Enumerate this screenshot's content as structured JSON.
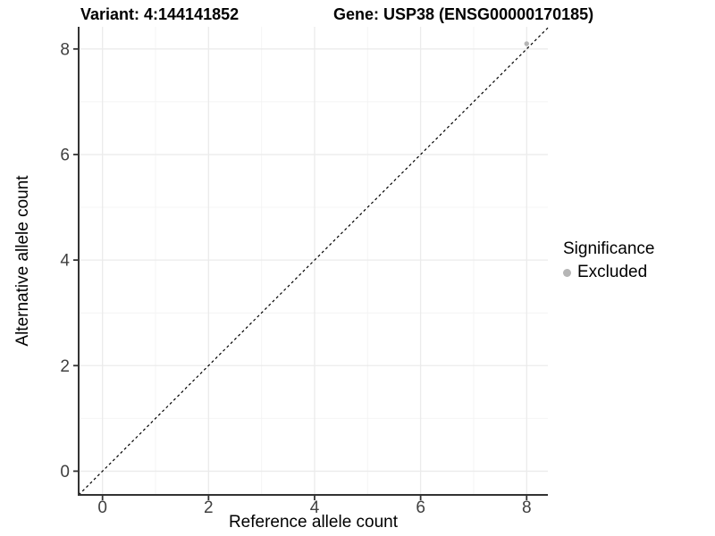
{
  "header": {
    "variant_title": "Variant: 4:144141852",
    "gene_title": "Gene: USP38 (ENSG00000170185)"
  },
  "chart_data": {
    "type": "scatter",
    "xlabel": "Reference allele count",
    "ylabel": "Alternative allele count",
    "xlim": [
      -0.45,
      8.4
    ],
    "ylim": [
      -0.45,
      8.42
    ],
    "x_ticks": [
      "0",
      "2",
      "4",
      "6",
      "8"
    ],
    "x_tick_values": [
      0,
      2,
      4,
      6,
      8
    ],
    "y_ticks": [
      "0",
      "2",
      "4",
      "6",
      "8"
    ],
    "y_tick_values": [
      0,
      2,
      4,
      6,
      8
    ],
    "x_minor_ticks": [
      1,
      3,
      5,
      7
    ],
    "y_minor_ticks": [
      1,
      3,
      5,
      7
    ],
    "grid": "major+minor",
    "reference_line": {
      "type": "identity y=x",
      "style": "dashed",
      "color": "#000000"
    },
    "series": [
      {
        "name": "Excluded",
        "color": "#b5b5b5",
        "marker": "circle",
        "points": [
          [
            8,
            8.1
          ]
        ]
      }
    ],
    "legend": {
      "title": "Significance",
      "position": "right",
      "items": [
        {
          "label": "Excluded",
          "color": "#b5b5b5"
        }
      ]
    },
    "colors": {
      "background": "#ffffff",
      "grid_major": "#ebebeb",
      "grid_minor": "#f4f4f4",
      "axis_line": "#333333",
      "tick_label": "#404040"
    }
  }
}
